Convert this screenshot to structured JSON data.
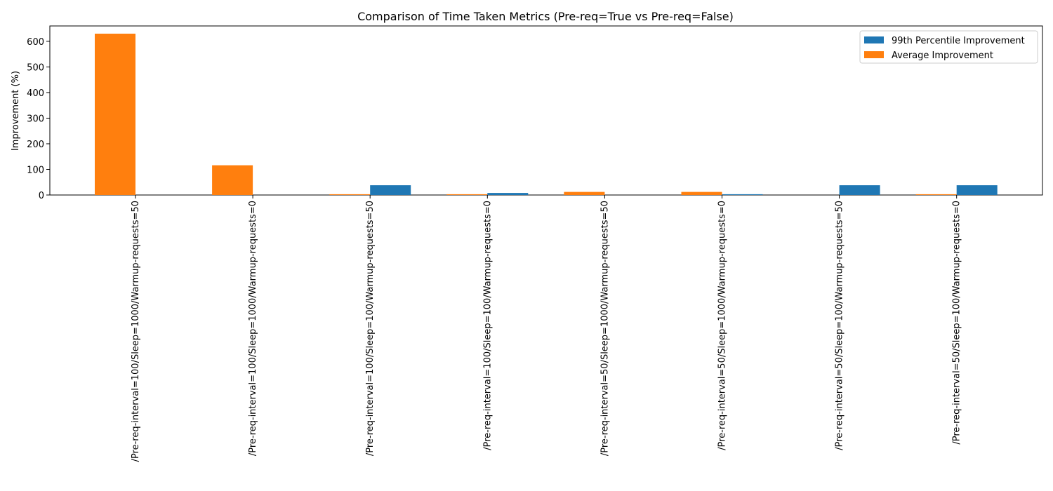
{
  "chart_data": {
    "type": "bar",
    "title": "Comparison of Time Taken Metrics (Pre-req=True vs Pre-req=False)",
    "xlabel": "",
    "ylabel": "Improvement (%)",
    "ylim": [
      0,
      660
    ],
    "yticks": [
      0,
      100,
      200,
      300,
      400,
      500,
      600
    ],
    "grid": false,
    "legend_position": "top-right",
    "categories": [
      "/Pre-req-interval=100/Sleep=1000/Warmup-requests=50",
      "/Pre-req-interval=100/Sleep=1000/Warmup-requests=0",
      "/Pre-req-interval=100/Sleep=100/Warmup-requests=50",
      "/Pre-req-interval=100/Sleep=100/Warmup-requests=0",
      "/Pre-req-interval=50/Sleep=1000/Warmup-requests=50",
      "/Pre-req-interval=50/Sleep=1000/Warmup-requests=0",
      "/Pre-req-interval=50/Sleep=100/Warmup-requests=50",
      "/Pre-req-interval=50/Sleep=100/Warmup-requests=0"
    ],
    "series": [
      {
        "name": "99th Percentile Improvement",
        "color": "#1f77b4",
        "values": [
          0,
          0,
          38,
          8,
          0,
          3,
          38,
          38
        ]
      },
      {
        "name": "Average Improvement",
        "color": "#ff7f0e",
        "values": [
          630,
          116,
          3,
          3,
          12,
          12,
          0,
          3
        ]
      }
    ]
  }
}
